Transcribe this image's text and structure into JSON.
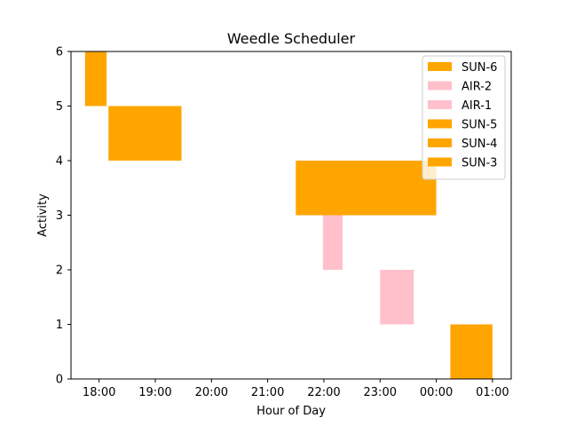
{
  "chart_data": {
    "type": "bar",
    "title": "Weedle Scheduler",
    "xlabel": "Hour of Day",
    "ylabel": "Activity",
    "ylim": [
      0,
      6
    ],
    "xlim": [
      "17:30",
      "01:20"
    ],
    "x_ticks": [
      "18:00",
      "19:00",
      "20:00",
      "21:00",
      "22:00",
      "23:00",
      "00:00",
      "01:00"
    ],
    "y_ticks": [
      0,
      1,
      2,
      3,
      4,
      5,
      6
    ],
    "grid": false,
    "legend_position": "top-right",
    "series": [
      {
        "name": "SUN-6",
        "color": "#FFA500",
        "start": "17:45",
        "end": "18:08",
        "y_bottom": 5,
        "y_top": 6
      },
      {
        "name": "AIR-2",
        "color": "#FFC0CB",
        "start": "21:59",
        "end": "22:20",
        "y_bottom": 2,
        "y_top": 3
      },
      {
        "name": "AIR-1",
        "color": "#FFC0CB",
        "start": "23:00",
        "end": "23:36",
        "y_bottom": 1,
        "y_top": 2
      },
      {
        "name": "SUN-5",
        "color": "#FFA500",
        "start": "18:10",
        "end": "19:28",
        "y_bottom": 4,
        "y_top": 5
      },
      {
        "name": "SUN-4",
        "color": "#FFA500",
        "start": "21:30",
        "end": "00:00",
        "y_bottom": 3,
        "y_top": 4
      },
      {
        "name": "SUN-3",
        "color": "#FFA500",
        "start": "00:15",
        "end": "01:00",
        "y_bottom": 0,
        "y_top": 1
      }
    ]
  }
}
